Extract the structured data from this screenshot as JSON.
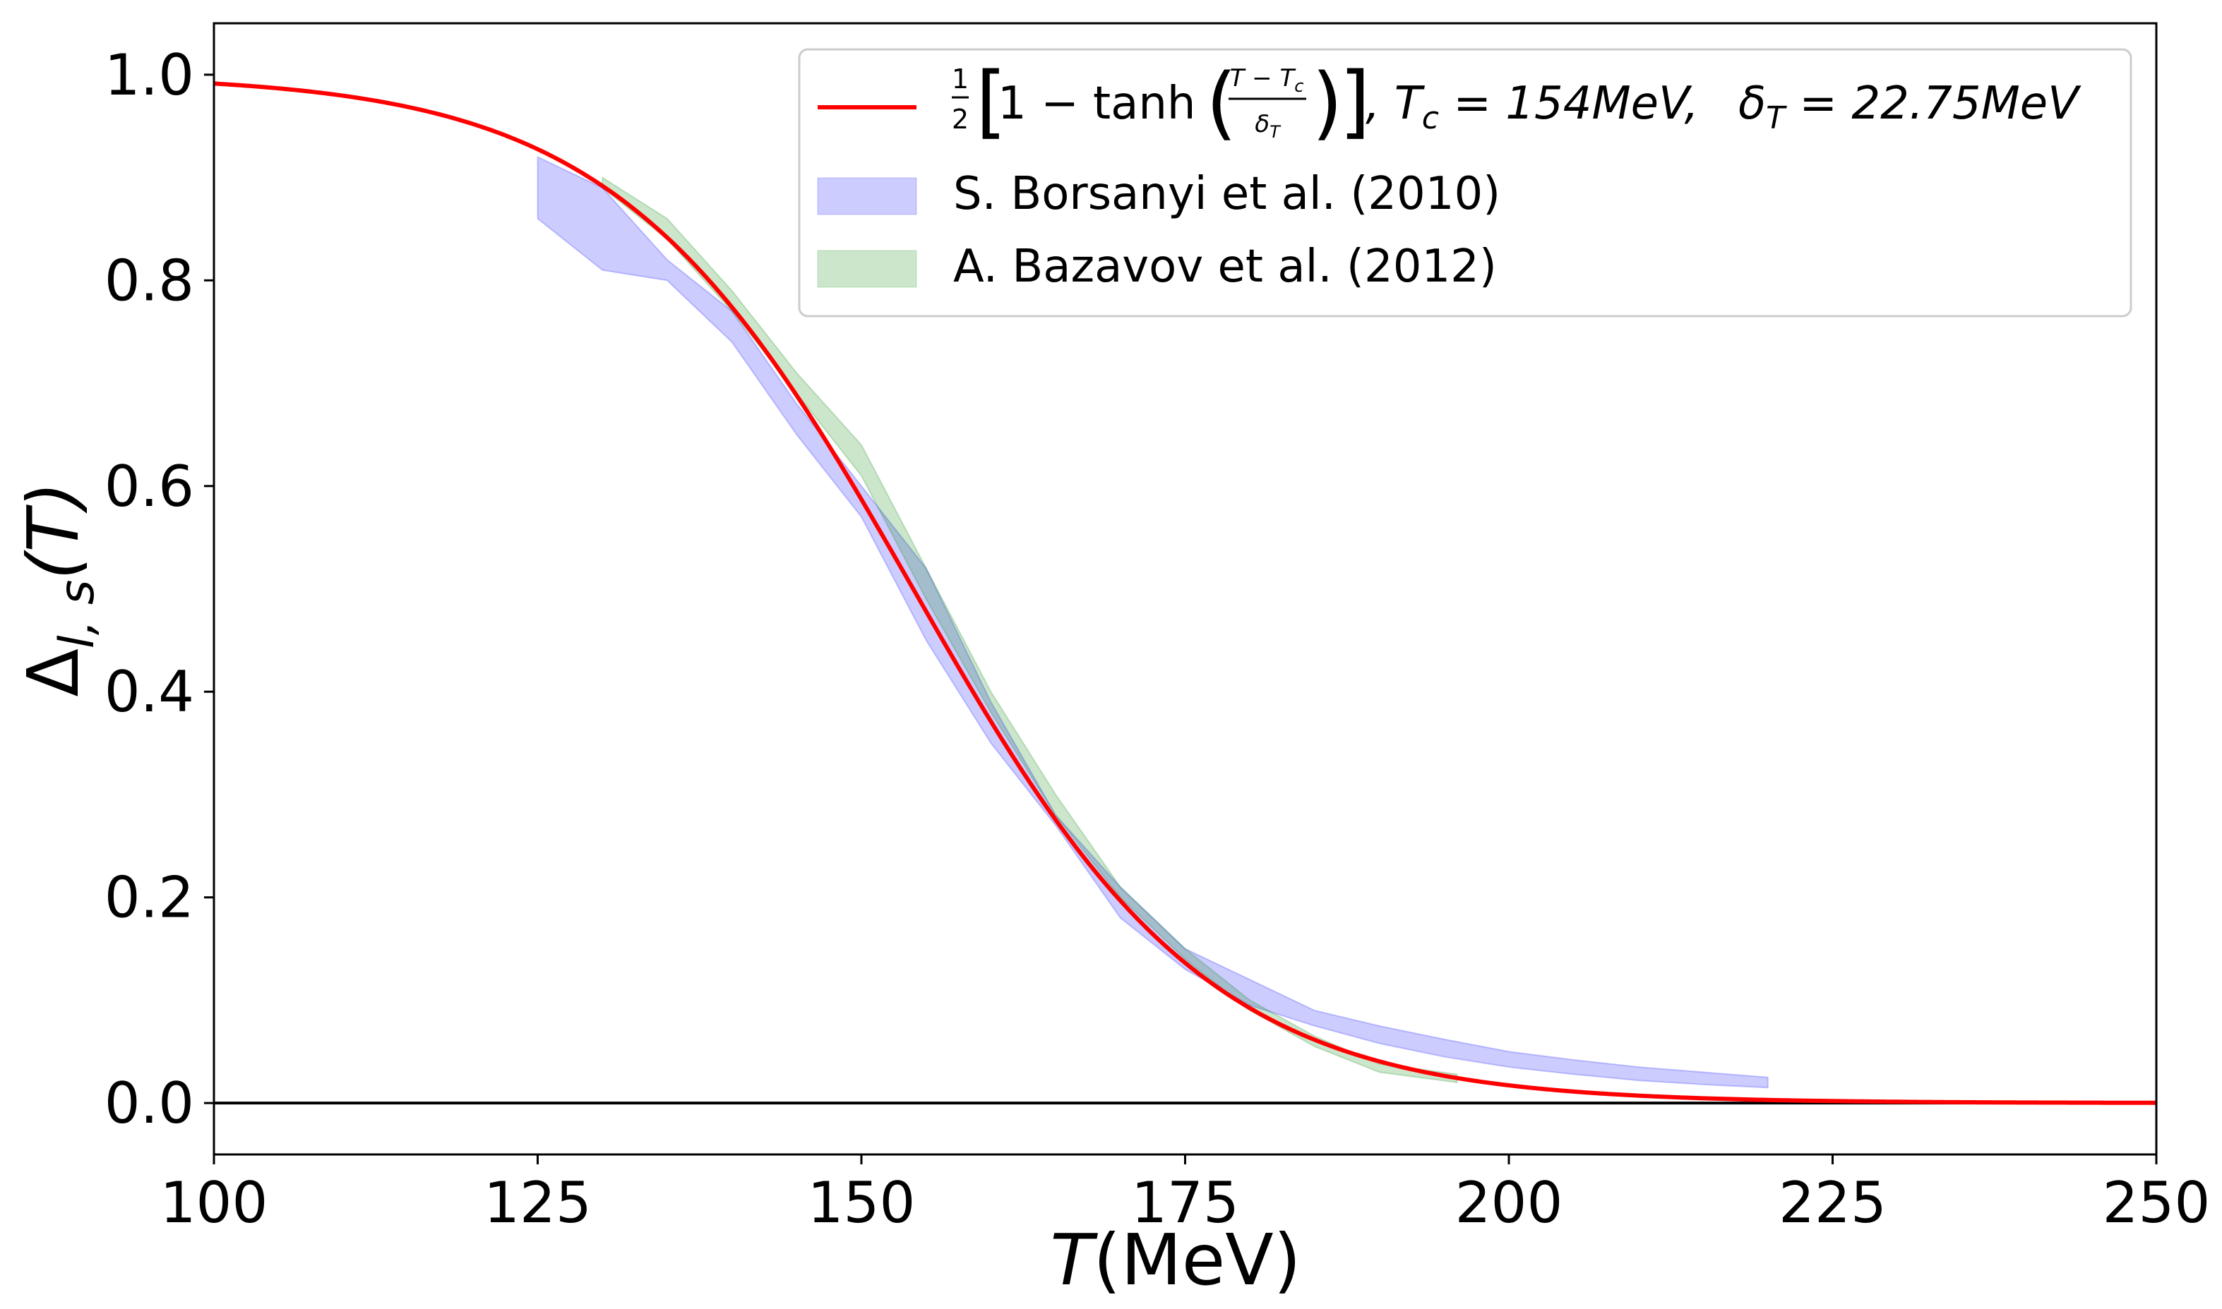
{
  "chart_data": {
    "type": "line",
    "title": "",
    "xlabel_italic": "T",
    "xlabel_rest": "(MeV)",
    "ylabel_main": "Δ",
    "ylabel_sub": "l, s",
    "ylabel_rest": "(T)",
    "xlim": [
      100,
      250
    ],
    "ylim": [
      -0.05,
      1.05
    ],
    "xticks": [
      100,
      125,
      150,
      175,
      200,
      225,
      250
    ],
    "yticks": [
      0.0,
      0.2,
      0.4,
      0.6,
      0.8,
      1.0
    ],
    "xtick_labels": [
      "100",
      "125",
      "150",
      "175",
      "200",
      "225",
      "250"
    ],
    "ytick_labels": [
      "0.0",
      "0.2",
      "0.4",
      "0.6",
      "0.8",
      "1.0"
    ],
    "grid": false,
    "legend_position": "top-right",
    "horizontal_line_y": 0,
    "fit": {
      "name": "fit",
      "color": "#ff0000",
      "Tc": 154,
      "deltaT": 22.75,
      "t_range": [
        100,
        250
      ],
      "legend_parts": {
        "half_num": "1",
        "half_den": "2",
        "bracket_open": "[",
        "one_minus_tanh": "1 − tanh",
        "paren_open": "(",
        "frac_num": "T − T",
        "frac_num_sub": "c",
        "frac_den": "δ",
        "frac_den_sub": "T",
        "paren_close": ")",
        "bracket_close": "]",
        "tc_text": ", T",
        "tc_sub": "c",
        "tc_value": " = 154MeV,",
        "delta_text": "δ",
        "delta_sub": "T",
        "delta_value": " = 22.75MeV"
      }
    },
    "series": [
      {
        "name": "S. Borsanyi et al. (2010)",
        "color": "#0000ff",
        "opacity": 0.2,
        "x": [
          125,
          130,
          135,
          140,
          145,
          150,
          155,
          160,
          165,
          170,
          175,
          180,
          185,
          190,
          195,
          200,
          205,
          210,
          215,
          220
        ],
        "lower": [
          0.86,
          0.81,
          0.8,
          0.74,
          0.65,
          0.57,
          0.45,
          0.35,
          0.27,
          0.18,
          0.13,
          0.095,
          0.075,
          0.058,
          0.045,
          0.035,
          0.028,
          0.022,
          0.018,
          0.015
        ],
        "upper": [
          0.92,
          0.89,
          0.82,
          0.77,
          0.68,
          0.6,
          0.52,
          0.39,
          0.28,
          0.21,
          0.15,
          0.12,
          0.09,
          0.075,
          0.062,
          0.05,
          0.042,
          0.035,
          0.03,
          0.025
        ]
      },
      {
        "name": "A. Bazavov et al. (2012)",
        "color": "#008000",
        "opacity": 0.2,
        "x": [
          130,
          135,
          140,
          145,
          150,
          155,
          160,
          165,
          170,
          175,
          180,
          185,
          190,
          196
        ],
        "lower": [
          0.89,
          0.84,
          0.77,
          0.69,
          0.61,
          0.49,
          0.38,
          0.28,
          0.2,
          0.14,
          0.09,
          0.055,
          0.03,
          0.02
        ],
        "upper": [
          0.9,
          0.86,
          0.79,
          0.71,
          0.64,
          0.52,
          0.4,
          0.3,
          0.21,
          0.15,
          0.1,
          0.065,
          0.038,
          0.028
        ]
      }
    ]
  }
}
